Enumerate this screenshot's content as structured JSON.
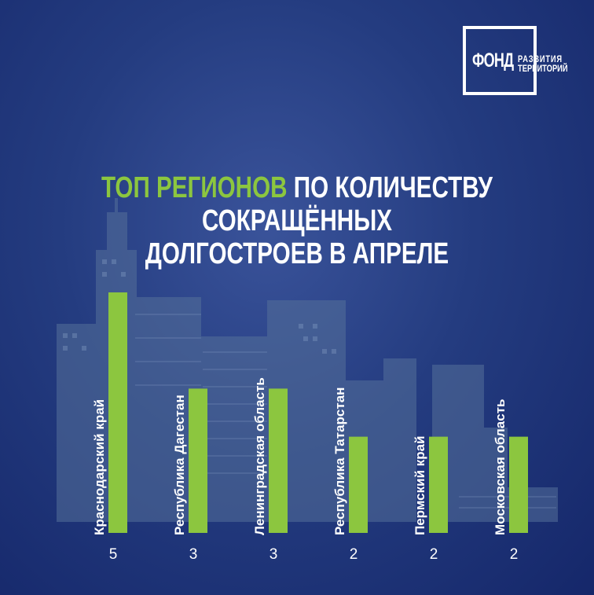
{
  "logo": {
    "main": "ФОНД",
    "line1": "РАЗВИТИЯ",
    "line2": "ТЕРРИТОРИЙ"
  },
  "title": {
    "highlight": "ТОП РЕГИОНОВ",
    "line1_rest": " ПО КОЛИЧЕСТВУ СОКРАЩЁННЫХ",
    "line2": "ДОЛГОСТРОЕВ В АПРЕЛЕ"
  },
  "colors": {
    "background": "#1f3579",
    "bar": "#8cc63f",
    "accent_text": "#8cc63f",
    "text": "#ffffff"
  },
  "chart_data": {
    "type": "bar",
    "categories": [
      "Краснодарский край",
      "Республика Дагестан",
      "Ленинградская область",
      "Республика Татарстан",
      "Пермский край",
      "Московская область"
    ],
    "values": [
      5,
      3,
      3,
      2,
      2,
      2
    ],
    "title": "ТОП РЕГИОНОВ ПО КОЛИЧЕСТВУ СОКРАЩЁННЫХ ДОЛГОСТРОЕВ В АПРЕЛЕ",
    "ylim": [
      0,
      5
    ],
    "grid": false,
    "legend": "none"
  }
}
